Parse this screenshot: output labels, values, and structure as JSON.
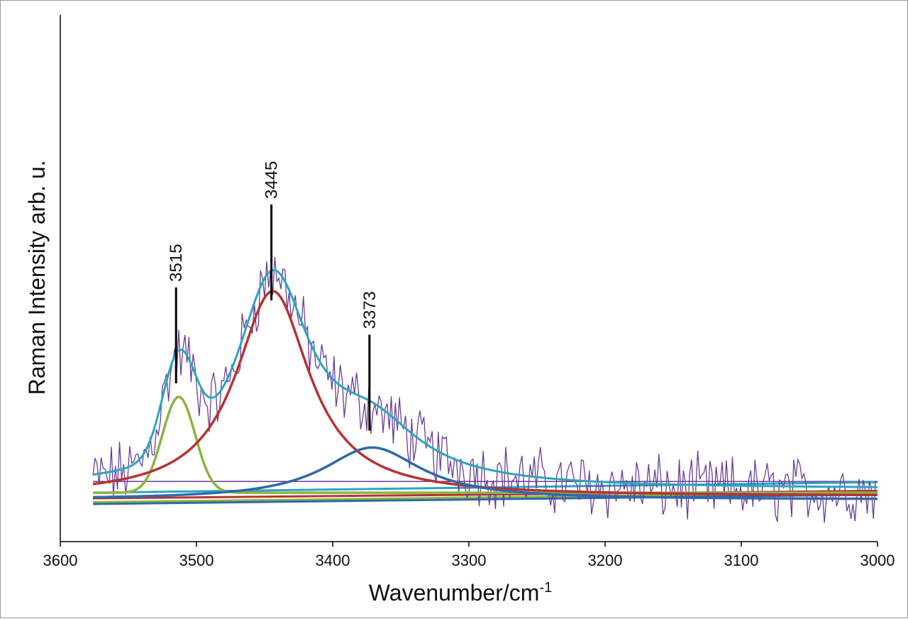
{
  "chart_data": {
    "type": "line",
    "title": "",
    "xlabel": "Wavenumber/cm",
    "xlabel_superscript": "-1",
    "ylabel": "Raman Intensity arb. u.",
    "xlim": [
      3600,
      3000
    ],
    "ylim": [
      -0.1,
      1.3
    ],
    "x_ticks": [
      3600,
      3500,
      3400,
      3300,
      3200,
      3100,
      3000
    ],
    "grid": false,
    "peaks": [
      {
        "label": "3515",
        "center": 3515
      },
      {
        "label": "3445",
        "center": 3445
      },
      {
        "label": "3373",
        "center": 3373
      }
    ],
    "components": [
      {
        "name": "component-3515",
        "color": "#8ab53f",
        "center": 3513,
        "amplitude": 0.255,
        "width": 12
      },
      {
        "name": "component-3445",
        "color": "#b83232",
        "center": 3444,
        "amplitude": 0.545,
        "width": 33
      },
      {
        "name": "component-3373",
        "color": "#2f6aab",
        "center": 3371,
        "amplitude": 0.138,
        "width": 44
      }
    ],
    "baselines": [
      {
        "name": "baseline-purple",
        "color": "#6a3d9a",
        "y0": 0.06,
        "y1": 0.06
      },
      {
        "name": "baseline-teal",
        "color": "#2aa6be",
        "y0": 0.03,
        "y1": 0.058
      },
      {
        "name": "baseline-red",
        "color": "#b83232",
        "y0": 0.015,
        "y1": 0.035
      },
      {
        "name": "baseline-green",
        "color": "#8ab53f",
        "y0": 0.005,
        "y1": 0.03
      },
      {
        "name": "baseline-blue",
        "color": "#2f6aab",
        "y0": 0.0,
        "y1": 0.025
      }
    ],
    "fit": {
      "name": "cumulative-fit",
      "color": "#2aa6be"
    },
    "spectrum": {
      "name": "raw-spectrum",
      "color": "#6a3d9a",
      "x_start": 3576,
      "x_end": 3000,
      "noise": 0.07
    }
  }
}
